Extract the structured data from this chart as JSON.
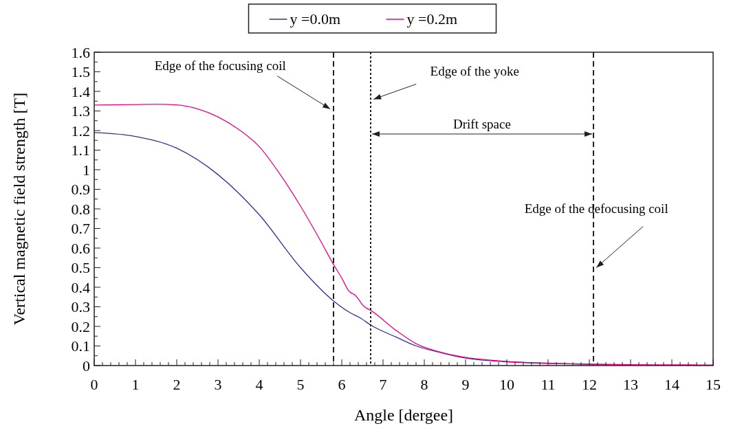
{
  "chart_data": {
    "type": "line",
    "xlabel": "Angle [dergee]",
    "ylabel": "Vertical magnetic field strength [T]",
    "xlim": [
      0,
      15
    ],
    "ylim": [
      0,
      1.6
    ],
    "xticks": [
      0,
      {
        "value": 0.2,
        "label": null
      },
      {
        "value": 0.4,
        "label": null
      },
      {
        "value": 0.6,
        "label": null
      },
      {
        "value": 0.8,
        "label": null
      },
      1,
      {
        "value": 1.2,
        "label": null
      },
      {
        "value": 1.4,
        "label": null
      },
      {
        "value": 1.6,
        "label": null
      },
      {
        "value": 1.8,
        "label": null
      },
      2,
      {
        "value": 2.2,
        "label": null
      },
      {
        "value": 2.4,
        "label": null
      },
      {
        "value": 2.6,
        "label": null
      },
      {
        "value": 2.8,
        "label": null
      },
      3,
      {
        "value": 3.2,
        "label": null
      },
      {
        "value": 3.4,
        "label": null
      },
      {
        "value": 3.6,
        "label": null
      },
      {
        "value": 3.8,
        "label": null
      },
      4,
      {
        "value": 4.2,
        "label": null
      },
      {
        "value": 4.4,
        "label": null
      },
      {
        "value": 4.6,
        "label": null
      },
      {
        "value": 4.8,
        "label": null
      },
      5,
      {
        "value": 5.2,
        "label": null
      },
      {
        "value": 5.4,
        "label": null
      },
      {
        "value": 5.6,
        "label": null
      },
      {
        "value": 5.8,
        "label": null
      },
      6,
      {
        "value": 6.2,
        "label": null
      },
      {
        "value": 6.4,
        "label": null
      },
      {
        "value": 6.6,
        "label": null
      },
      {
        "value": 6.8,
        "label": null
      },
      7,
      {
        "value": 7.2,
        "label": null
      },
      {
        "value": 7.4,
        "label": null
      },
      {
        "value": 7.6,
        "label": null
      },
      {
        "value": 7.8,
        "label": null
      },
      8,
      {
        "value": 8.2,
        "label": null
      },
      {
        "value": 8.4,
        "label": null
      },
      {
        "value": 8.6,
        "label": null
      },
      {
        "value": 8.8,
        "label": null
      },
      9,
      {
        "value": 9.2,
        "label": null
      },
      {
        "value": 9.4,
        "label": null
      },
      {
        "value": 9.6,
        "label": null
      },
      {
        "value": 9.8,
        "label": null
      },
      10,
      {
        "value": 10.2,
        "label": null
      },
      {
        "value": 10.4,
        "label": null
      },
      {
        "value": 10.6,
        "label": null
      },
      {
        "value": 10.8,
        "label": null
      },
      11,
      {
        "value": 11.2,
        "label": null
      },
      {
        "value": 11.4,
        "label": null
      },
      {
        "value": 11.6,
        "label": null
      },
      {
        "value": 11.8,
        "label": null
      },
      12,
      {
        "value": 12.2,
        "label": null
      },
      {
        "value": 12.4,
        "label": null
      },
      {
        "value": 12.6,
        "label": null
      },
      {
        "value": 12.8,
        "label": null
      },
      13,
      {
        "value": 13.2,
        "label": null
      },
      {
        "value": 13.4,
        "label": null
      },
      {
        "value": 13.6,
        "label": null
      },
      {
        "value": 13.8,
        "label": null
      },
      14,
      {
        "value": 14.2,
        "label": null
      },
      {
        "value": 14.4,
        "label": null
      },
      {
        "value": 14.6,
        "label": null
      },
      {
        "value": 14.8,
        "label": null
      },
      15
    ],
    "yticks": [
      0,
      {
        "value": 0.05,
        "label": null
      },
      0.1,
      {
        "value": 0.15,
        "label": null
      },
      0.2,
      {
        "value": 0.25,
        "label": null
      },
      0.3,
      {
        "value": 0.35,
        "label": null
      },
      0.4,
      {
        "value": 0.45,
        "label": null
      },
      0.5,
      {
        "value": 0.55,
        "label": null
      },
      0.6,
      {
        "value": 0.65,
        "label": null
      },
      0.7,
      {
        "value": 0.75,
        "label": null
      },
      0.8,
      {
        "value": 0.85,
        "label": null
      },
      0.9,
      {
        "value": 0.95,
        "label": null
      },
      1,
      {
        "value": 1.05,
        "label": null
      },
      1.1,
      {
        "value": 1.15,
        "label": null
      },
      1.2,
      {
        "value": 1.25,
        "label": null
      },
      1.3,
      {
        "value": 1.35,
        "label": null
      },
      1.4,
      {
        "value": 1.45,
        "label": null
      },
      1.5,
      {
        "value": 1.55,
        "label": null
      },
      1.6
    ],
    "legend": "top",
    "grid": false,
    "marker": "none",
    "line_style": "solid",
    "series": [
      {
        "name": "y =0.0m",
        "color": "#2e3192",
        "x": [
          0,
          1,
          2,
          3,
          4,
          5,
          5.8,
          6.2,
          6.45,
          6.7,
          7.3,
          7.8,
          8.4,
          8.9,
          10,
          11.2,
          12.1,
          13
        ],
        "values": [
          1.19,
          1.17,
          1.11,
          0.975,
          0.77,
          0.5,
          0.33,
          0.27,
          0.243,
          0.207,
          0.147,
          0.1,
          0.066,
          0.042,
          0.019,
          0.01,
          0.006,
          0.004
        ]
      },
      {
        "name": "y =0.2m",
        "color": "#ec008c",
        "x": [
          0,
          1,
          1.5,
          2,
          2.5,
          3,
          3.5,
          4,
          4.5,
          5,
          5.45,
          5.8,
          6,
          6.17,
          6.33,
          6.55,
          6.7,
          7.3,
          7.8,
          8.4,
          8.9,
          10,
          11.2,
          12.1,
          13,
          14,
          15
        ],
        "values": [
          1.33,
          1.333,
          1.335,
          1.331,
          1.311,
          1.27,
          1.206,
          1.118,
          0.978,
          0.814,
          0.65,
          0.516,
          0.446,
          0.381,
          0.358,
          0.3,
          0.282,
          0.182,
          0.112,
          0.068,
          0.045,
          0.021,
          0.011,
          0.007,
          0.005,
          0.004,
          0.003
        ]
      }
    ],
    "ref_lines": [
      {
        "axis": "x",
        "value": 5.8,
        "line_style": "dashed",
        "color": "#231f20"
      },
      {
        "axis": "x",
        "value": 6.7,
        "line_style": "dotted",
        "color": "#231f20"
      },
      {
        "axis": "x",
        "value": 12.1,
        "line_style": "dashed",
        "color": "#231f20"
      }
    ],
    "annotations": [
      {
        "text": "Edge of the focusing coil",
        "x": 5.72,
        "y": 1.31
      },
      {
        "text": "Edge of the yoke",
        "x": 6.77,
        "y": 1.36
      },
      {
        "text": "Edge of the defocusing coil",
        "x": 12.17,
        "y": 0.5
      },
      "Drift space"
    ]
  }
}
